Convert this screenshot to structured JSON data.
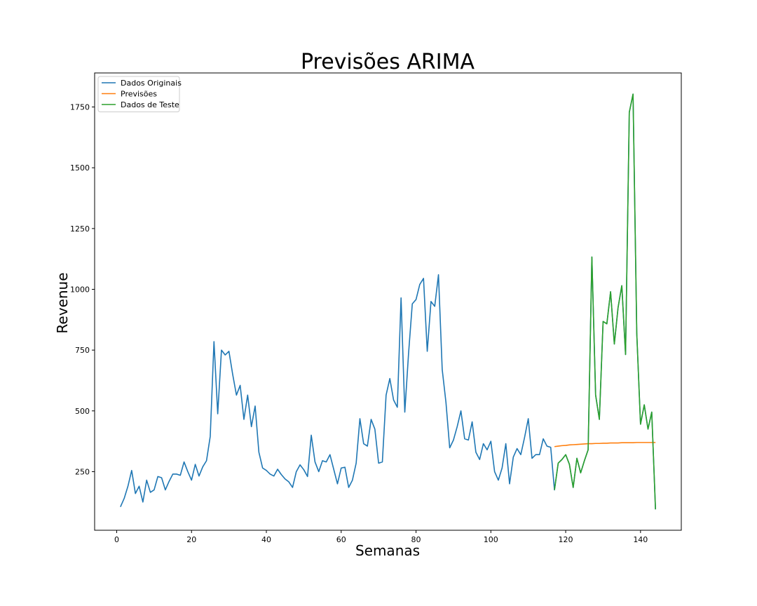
{
  "chart_data": {
    "type": "line",
    "title": "Previsões ARIMA",
    "xlabel": "Semanas",
    "ylabel": "Revenue",
    "xlim": [
      -5.9,
      150.9
    ],
    "ylim": [
      9,
      1890
    ],
    "xticks": [
      0,
      20,
      40,
      60,
      80,
      100,
      120,
      140
    ],
    "yticks": [
      250,
      500,
      750,
      1000,
      1250,
      1500,
      1750
    ],
    "grid": false,
    "legend_position": "top-left",
    "series": [
      {
        "name": "Dados Originais",
        "color": "#1f77b4",
        "x": [
          1,
          2,
          3,
          4,
          5,
          6,
          7,
          8,
          9,
          10,
          11,
          12,
          13,
          14,
          15,
          16,
          17,
          18,
          19,
          20,
          21,
          22,
          23,
          24,
          25,
          26,
          27,
          28,
          29,
          30,
          31,
          32,
          33,
          34,
          35,
          36,
          37,
          38,
          39,
          40,
          41,
          42,
          43,
          44,
          45,
          46,
          47,
          48,
          49,
          50,
          51,
          52,
          53,
          54,
          55,
          56,
          57,
          58,
          59,
          60,
          61,
          62,
          63,
          64,
          65,
          66,
          67,
          68,
          69,
          70,
          71,
          72,
          73,
          74,
          75,
          76,
          77,
          78,
          79,
          80,
          81,
          82,
          83,
          84,
          85,
          86,
          87,
          88,
          89,
          90,
          91,
          92,
          93,
          94,
          95,
          96,
          97,
          98,
          99,
          100,
          101,
          102,
          103,
          104,
          105,
          106,
          107,
          108,
          109,
          110,
          111,
          112,
          113,
          114,
          115,
          116,
          117,
          118,
          119,
          120,
          121,
          122,
          123,
          124,
          125,
          126,
          127,
          128,
          129,
          130,
          131,
          132,
          133,
          134,
          135,
          136,
          137,
          138,
          139,
          140,
          141,
          142,
          143,
          144
        ],
        "y": [
          105,
          140,
          190,
          255,
          160,
          190,
          125,
          215,
          165,
          175,
          230,
          225,
          175,
          210,
          240,
          240,
          235,
          290,
          250,
          215,
          280,
          232,
          270,
          295,
          395,
          785,
          488,
          750,
          730,
          745,
          650,
          565,
          605,
          465,
          565,
          435,
          520,
          330,
          265,
          255,
          240,
          232,
          260,
          238,
          220,
          208,
          185,
          250,
          278,
          258,
          230,
          400,
          290,
          250,
          295,
          290,
          320,
          260,
          200,
          265,
          268,
          185,
          215,
          285,
          468,
          365,
          355,
          465,
          425,
          285,
          290,
          565,
          633,
          545,
          515,
          965,
          495,
          735,
          940,
          958,
          1020,
          1045,
          745,
          950,
          930,
          1060,
          670,
          535,
          348,
          380,
          435,
          500,
          385,
          380,
          455,
          330,
          300,
          365,
          340,
          375,
          250,
          215,
          265,
          365,
          200,
          310,
          345,
          320,
          390,
          468,
          305,
          320,
          320,
          385,
          355,
          350,
          175,
          285,
          300,
          320,
          280,
          185,
          305,
          245,
          295,
          340,
          1133,
          565,
          465,
          868,
          858,
          990,
          775,
          925,
          1015,
          732,
          1728,
          1803,
          818,
          445,
          525,
          425,
          495,
          95
        ]
      },
      {
        "name": "Previsões",
        "color": "#ff7f0e",
        "x": [
          117,
          118,
          119,
          120,
          121,
          122,
          123,
          124,
          125,
          126,
          127,
          128,
          129,
          130,
          131,
          132,
          133,
          134,
          135,
          136,
          137,
          138,
          139,
          140,
          141,
          142,
          143,
          144
        ],
        "y": [
          353,
          355,
          357,
          358,
          360,
          361,
          362,
          363,
          364,
          365,
          365,
          366,
          366,
          367,
          367,
          368,
          368,
          368,
          369,
          369,
          369,
          369,
          370,
          370,
          370,
          370,
          370,
          370
        ]
      },
      {
        "name": "Dados de Teste",
        "color": "#2ca02c",
        "x": [
          117,
          118,
          119,
          120,
          121,
          122,
          123,
          124,
          125,
          126,
          127,
          128,
          129,
          130,
          131,
          132,
          133,
          134,
          135,
          136,
          137,
          138,
          139,
          140,
          141,
          142,
          143,
          144
        ],
        "y": [
          175,
          285,
          300,
          320,
          280,
          185,
          305,
          245,
          295,
          340,
          1133,
          565,
          465,
          868,
          858,
          990,
          775,
          925,
          1015,
          732,
          1728,
          1803,
          818,
          445,
          525,
          425,
          495,
          95
        ]
      }
    ]
  }
}
